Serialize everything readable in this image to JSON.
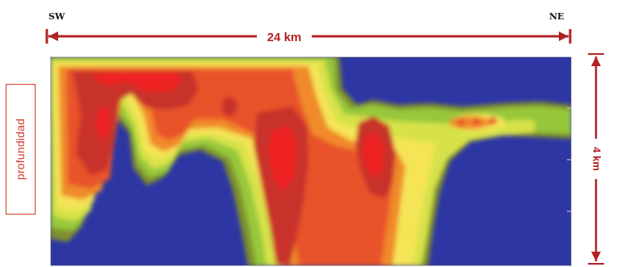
{
  "header": {
    "left_direction": "SW",
    "right_direction": "NE"
  },
  "distance": {
    "label": "24 km",
    "color": "#b22222"
  },
  "depth": {
    "axis_label": "profundidad",
    "scale_label": "4 km",
    "box_color": "#d23a2a"
  },
  "section_palette": {
    "deep_blue": "#2e36a3",
    "olive": "#7f8f2d",
    "green": "#97c83a",
    "yellow_green": "#d7e24a",
    "yellow": "#f4e457",
    "orange": "#f08a2a",
    "red_orange": "#e8532a",
    "dark_red": "#c8322a",
    "bright_red": "#ee2222"
  }
}
